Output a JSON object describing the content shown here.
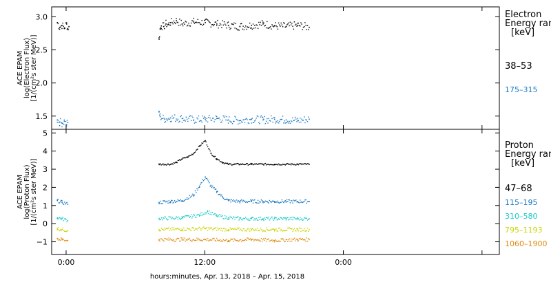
{
  "chart_data": [
    {
      "type": "scatter",
      "panel": "electron",
      "ylabel_lines": [
        "ACE EPAM",
        "log(Electron Flux)",
        "[1/(cm²s ster MeV)]"
      ],
      "ylim": [
        1.3,
        3.15
      ],
      "yticks": [
        1.5,
        2.0,
        2.5,
        3.0
      ],
      "ytick_labels": [
        "1.5",
        "2.0",
        "2.5",
        "3.0"
      ],
      "legend_title": [
        "Electron",
        "Energy ran",
        "[keV]"
      ],
      "series": [
        {
          "name": "38–53",
          "color": "#000000",
          "x": [
            -0.8,
            -0.6,
            -0.4,
            -0.2,
            0,
            0.1,
            0.2,
            8.0,
            8.1,
            8.2,
            8.4,
            8.6,
            8.8,
            9.0,
            9.5,
            10,
            11,
            12,
            13,
            14,
            15,
            16,
            17,
            18,
            19,
            20,
            21
          ],
          "y": [
            2.92,
            2.85,
            2.88,
            2.84,
            2.9,
            2.83,
            2.86,
            2.67,
            2.82,
            2.87,
            2.86,
            2.9,
            2.89,
            2.92,
            2.95,
            2.9,
            2.93,
            2.92,
            2.9,
            2.88,
            2.86,
            2.88,
            2.9,
            2.87,
            2.86,
            2.88,
            2.85
          ]
        },
        {
          "name": "175–315",
          "color": "#1a78c2",
          "x": [
            -0.8,
            -0.6,
            -0.4,
            -0.2,
            0,
            0.1,
            8.0,
            8.1,
            8.5,
            9,
            10,
            11,
            12,
            13,
            14,
            15,
            16,
            17,
            18,
            19,
            20,
            21
          ],
          "y": [
            1.45,
            1.42,
            1.4,
            1.43,
            1.38,
            1.41,
            1.57,
            1.5,
            1.46,
            1.48,
            1.47,
            1.45,
            1.46,
            1.47,
            1.45,
            1.44,
            1.46,
            1.45,
            1.46,
            1.45,
            1.44,
            1.46
          ]
        }
      ]
    },
    {
      "type": "scatter",
      "panel": "proton",
      "ylabel_lines": [
        "ACE EPAM",
        "log(Proton Flux)",
        "[1/(cm²s ster MeV)]"
      ],
      "ylim": [
        -1.7,
        5.2
      ],
      "yticks": [
        -1,
        0,
        1,
        2,
        3,
        4,
        5
      ],
      "ytick_labels": [
        "−1",
        "0",
        "1",
        "2",
        "3",
        "4",
        "5"
      ],
      "legend_title": [
        "Proton",
        "Energy ran",
        "[keV]"
      ],
      "series": [
        {
          "name": "47–68",
          "color": "#000000",
          "x": [
            8.0,
            9.0,
            9.5,
            10.0,
            10.5,
            11.0,
            11.5,
            12.0,
            12.5,
            13.0,
            13.5,
            14.0,
            14.5,
            15.0,
            16,
            17,
            18,
            19,
            20,
            21
          ],
          "y": [
            3.3,
            3.3,
            3.4,
            3.6,
            3.7,
            3.9,
            4.3,
            4.6,
            3.9,
            3.6,
            3.4,
            3.3,
            3.3,
            3.3,
            3.3,
            3.3,
            3.3,
            3.3,
            3.3,
            3.3
          ]
        },
        {
          "name": "115–195",
          "color": "#1a78c2",
          "x": [
            -0.8,
            -0.4,
            0.1,
            8.0,
            9.0,
            10.0,
            11.0,
            11.5,
            12.0,
            12.5,
            13.0,
            13.5,
            14.0,
            15,
            16,
            17,
            18,
            19,
            20,
            21
          ],
          "y": [
            1.3,
            1.2,
            1.1,
            1.2,
            1.25,
            1.3,
            1.6,
            2.1,
            2.6,
            2.1,
            1.8,
            1.5,
            1.3,
            1.25,
            1.25,
            1.25,
            1.25,
            1.25,
            1.25,
            1.25
          ]
        },
        {
          "name": "310–580",
          "color": "#18c8c8",
          "x": [
            -0.8,
            -0.4,
            0.1,
            8.0,
            10,
            11.5,
            12.2,
            13,
            14,
            15,
            16,
            17,
            18,
            19,
            20,
            21
          ],
          "y": [
            0.35,
            0.3,
            0.2,
            0.3,
            0.35,
            0.5,
            0.7,
            0.45,
            0.35,
            0.3,
            0.3,
            0.3,
            0.3,
            0.3,
            0.3,
            0.3
          ]
        },
        {
          "name": "795–1193",
          "color": "#c8d400",
          "x": [
            -0.8,
            -0.4,
            0.1,
            8.0,
            10,
            12,
            14,
            16,
            18,
            20,
            21
          ],
          "y": [
            -0.25,
            -0.3,
            -0.35,
            -0.3,
            -0.28,
            -0.25,
            -0.3,
            -0.3,
            -0.3,
            -0.3,
            -0.3
          ]
        },
        {
          "name": "1060–1900",
          "color": "#e08a10",
          "x": [
            -0.8,
            -0.4,
            0.1,
            8.0,
            10,
            12,
            14,
            16,
            18,
            20,
            21
          ],
          "y": [
            -0.8,
            -0.85,
            -0.9,
            -0.85,
            -0.85,
            -0.85,
            -0.9,
            -0.85,
            -0.9,
            -0.85,
            -0.85
          ]
        }
      ]
    }
  ],
  "x_axis": {
    "xlim": [
      -1.25,
      37.5
    ],
    "ticks": [
      0,
      12,
      24,
      36
    ],
    "tick_labels": [
      "0:00",
      "12:00",
      "0:00"
    ],
    "label_ticks": [
      0,
      12,
      24
    ],
    "xlabel": "hours:minutes, Apr. 13, 2018 – Apr. 15, 2018"
  }
}
